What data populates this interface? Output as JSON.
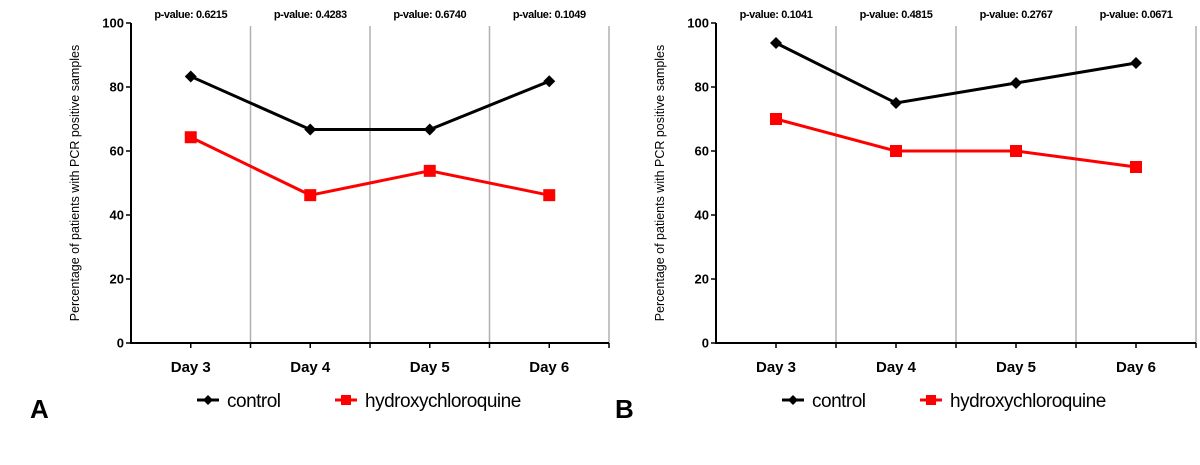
{
  "chart_data": [
    {
      "type": "line",
      "panel_label": "A",
      "title": "",
      "xlabel": "",
      "ylabel": "Percentage of patients with PCR positive samples",
      "ylim": [
        0,
        100
      ],
      "yticks": [
        "0",
        "20",
        "40",
        "60",
        "80",
        "100"
      ],
      "categories": [
        "Day 3",
        "Day 4",
        "Day 5",
        "Day 6"
      ],
      "annotations": [
        "p-value: 0.6215",
        "p-value: 0.4283",
        "p-value: 0.6740",
        "p-value: 0.1049"
      ],
      "series": [
        {
          "name": "control",
          "color": "#000000",
          "marker": "diamond",
          "values": [
            83.3,
            66.7,
            66.7,
            81.8
          ]
        },
        {
          "name": "hydroxychloroquine",
          "color": "#ff0000",
          "marker": "square",
          "values": [
            64.3,
            46.2,
            53.8,
            46.2
          ]
        }
      ],
      "grid": "vertical separators between categories",
      "legend": "bottom-center"
    },
    {
      "type": "line",
      "panel_label": "B",
      "title": "",
      "xlabel": "",
      "ylabel": "Percentage of patients with PCR positive samples",
      "ylim": [
        0,
        100
      ],
      "yticks": [
        "0",
        "20",
        "40",
        "60",
        "80",
        "100"
      ],
      "categories": [
        "Day 3",
        "Day 4",
        "Day 5",
        "Day 6"
      ],
      "annotations": [
        "p-value: 0.1041",
        "p-value: 0.4815",
        "p-value: 0.2767",
        "p-value: 0.0671"
      ],
      "series": [
        {
          "name": "control",
          "color": "#000000",
          "marker": "diamond",
          "values": [
            93.75,
            75.0,
            81.25,
            87.5
          ]
        },
        {
          "name": "hydroxychloroquine",
          "color": "#ff0000",
          "marker": "square",
          "values": [
            70.0,
            60.0,
            60.0,
            55.0
          ]
        }
      ],
      "grid": "vertical separators between categories",
      "legend": "bottom-center"
    }
  ]
}
